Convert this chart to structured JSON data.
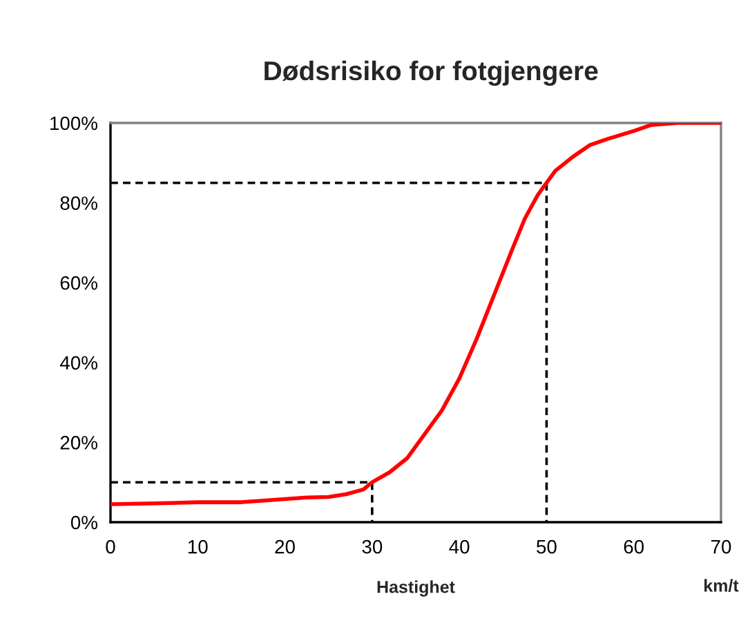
{
  "chart_data": {
    "type": "line",
    "title": "Dødsrisiko for fotgjengere",
    "xlabel": "Hastighet",
    "annotations": [
      "km/t"
    ],
    "xlim": [
      0,
      70
    ],
    "xticks": [
      0,
      10,
      20,
      30,
      40,
      50,
      60,
      70
    ],
    "ylim": [
      0,
      100
    ],
    "yticks": [
      {
        "value": 0,
        "label": "0%"
      },
      {
        "value": 20,
        "label": "20%"
      },
      {
        "value": 40,
        "label": "40%"
      },
      {
        "value": 60,
        "label": "60%"
      },
      {
        "value": 80,
        "label": "80%"
      },
      {
        "value": 100,
        "label": "100%"
      }
    ],
    "grid": false,
    "legend": false,
    "series": [
      {
        "color": "#ff0000",
        "line_style": "solid",
        "x": [
          0,
          5,
          10,
          15,
          20,
          22.5,
          25,
          27,
          29,
          30,
          32,
          34,
          36,
          38,
          40,
          42,
          44,
          46,
          47.5,
          49,
          50,
          51,
          53,
          55,
          57,
          60,
          62,
          65,
          70
        ],
        "values": [
          4.5,
          4.7,
          5,
          5,
          5.8,
          6.2,
          6.3,
          7,
          8.2,
          10,
          12.5,
          16,
          22,
          28,
          36,
          46,
          57,
          68,
          76,
          82,
          85,
          88,
          91.5,
          94.5,
          96,
          98,
          99.5,
          100,
          100
        ]
      },
      {
        "color": "#000000",
        "line_style": "dashed",
        "x": [
          0,
          30,
          30
        ],
        "values": [
          10,
          10,
          0
        ]
      },
      {
        "color": "#000000",
        "line_style": "dashed",
        "x": [
          0,
          50,
          50
        ],
        "values": [
          85,
          85,
          0
        ]
      }
    ]
  }
}
